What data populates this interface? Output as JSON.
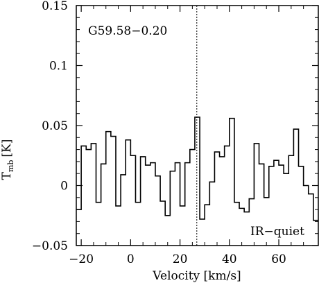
{
  "chart_data": {
    "type": "line",
    "style": "step",
    "x_label": "Velocity [km/s]",
    "y_label_main": "T",
    "y_label_sub": "mb",
    "y_label_unit": "[K]",
    "xlim": [
      -22,
      76
    ],
    "ylim": [
      -0.05,
      0.15
    ],
    "x_ticks": [
      -20,
      0,
      20,
      40,
      60
    ],
    "x_tick_labels": [
      "−20",
      "0",
      "20",
      "40",
      "60"
    ],
    "y_ticks": [
      -0.05,
      0,
      0.05,
      0.1,
      0.15
    ],
    "y_tick_labels": [
      "−0.05",
      "0",
      "0.05",
      "0.1",
      "0.15"
    ],
    "source_label": "G59.58−0.20",
    "class_label": "IR−quiet",
    "vline_x": 26.8,
    "bin_width": 2.0,
    "series": [
      {
        "bin_left": [
          -22,
          -20,
          -18,
          -16,
          -14,
          -12,
          -10,
          -8,
          -6,
          -4,
          -2,
          0,
          2,
          4,
          6,
          8,
          10,
          12,
          14,
          16,
          18,
          20,
          22,
          24,
          26,
          28,
          30,
          32,
          34,
          36,
          38,
          40,
          42,
          44,
          46,
          48,
          50,
          52,
          54,
          56,
          58,
          60,
          62,
          64,
          66,
          68,
          70,
          72,
          74
        ],
        "y": [
          -0.02,
          0.033,
          0.03,
          0.035,
          -0.014,
          0.018,
          0.045,
          0.041,
          -0.017,
          0.009,
          0.038,
          0.025,
          -0.014,
          0.024,
          0.017,
          0.019,
          0.008,
          -0.013,
          -0.025,
          0.012,
          0.019,
          -0.017,
          0.019,
          0.03,
          0.057,
          -0.028,
          -0.016,
          0.003,
          0.028,
          0.024,
          0.033,
          0.056,
          -0.014,
          -0.019,
          -0.022,
          -0.011,
          0.035,
          0.018,
          -0.01,
          0.016,
          0.021,
          0.017,
          0.01,
          0.025,
          0.047,
          0.016,
          0.0,
          -0.007,
          -0.029
        ]
      }
    ]
  }
}
